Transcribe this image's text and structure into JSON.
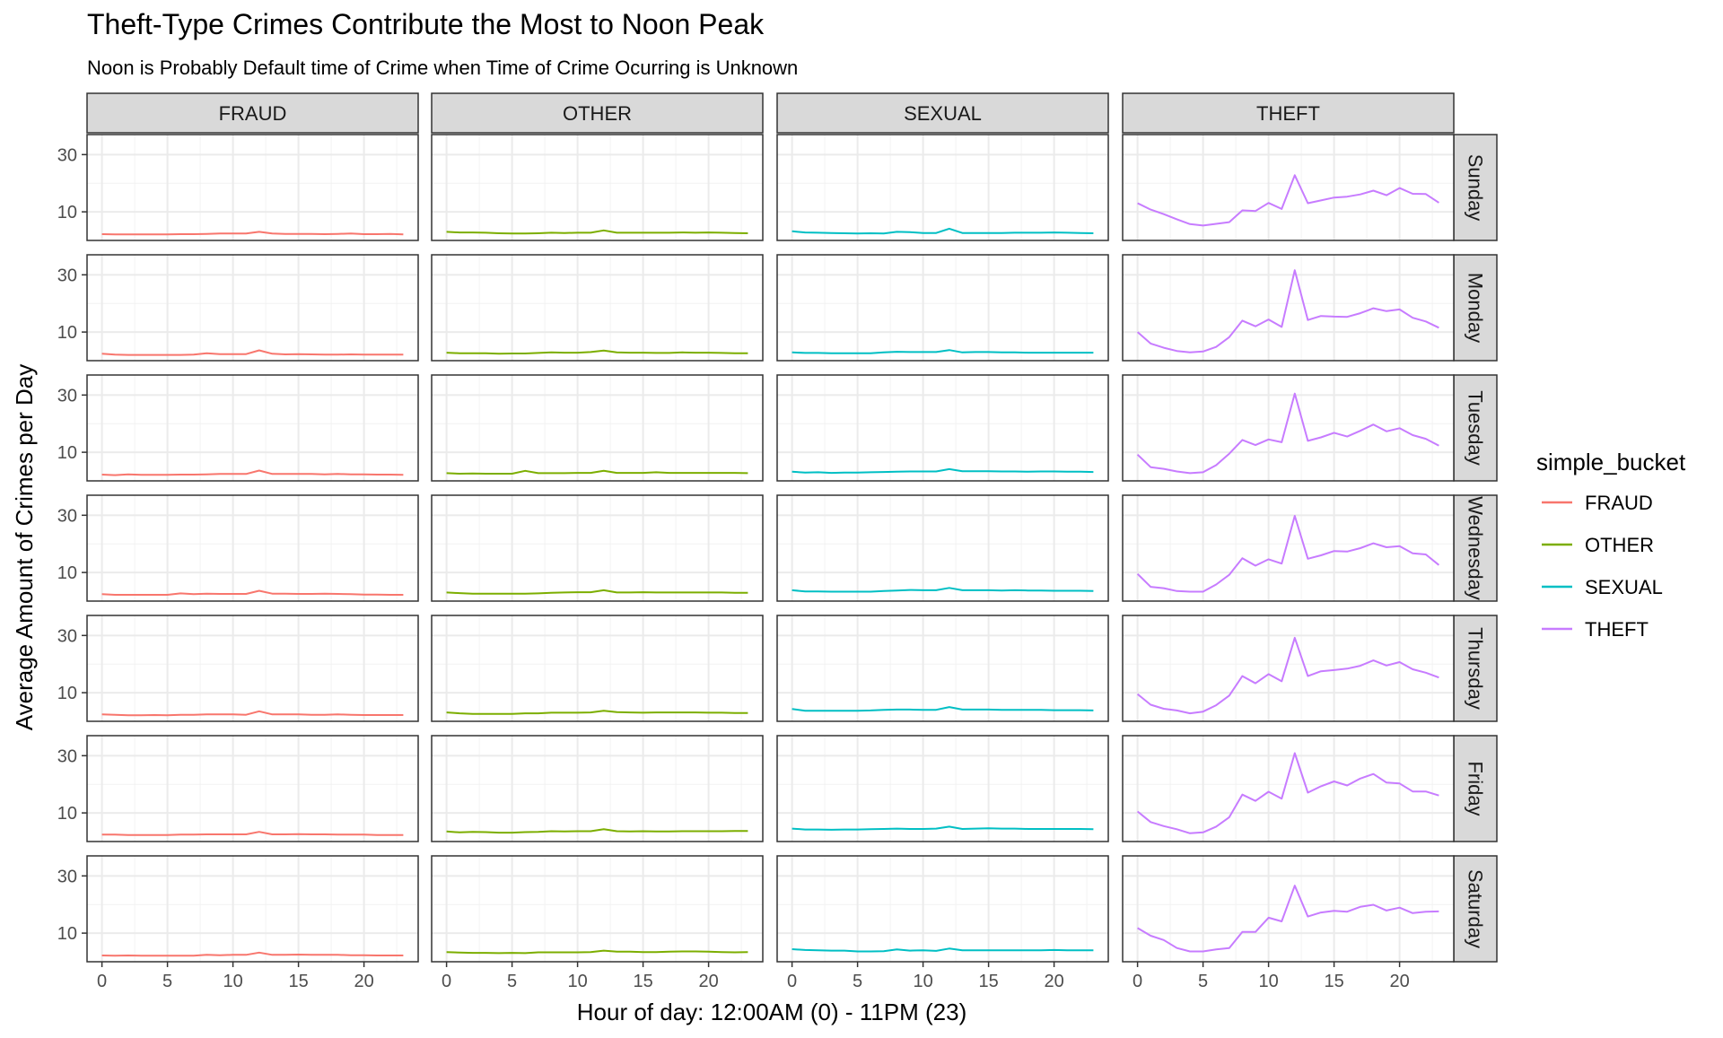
{
  "chart_data": {
    "type": "line",
    "title": "Theft-Type Crimes Contribute the Most to Noon Peak",
    "subtitle": "Noon is Probably Default time of Crime when Time of Crime Ocurring is Unknown",
    "xlabel": "Hour of day: 12:00AM (0) - 11PM (23)",
    "ylabel": "Average Amount of Crimes per Day",
    "xlim": [
      0,
      23
    ],
    "ylim": [
      0,
      37
    ],
    "x_ticks": [
      0,
      5,
      10,
      15,
      20
    ],
    "y_ticks": [
      10,
      30
    ],
    "grid": true,
    "legend_position": "right",
    "legend_title": "simple_bucket",
    "column_facets": [
      "FRAUD",
      "OTHER",
      "SEXUAL",
      "THEFT"
    ],
    "row_facets": [
      "Sunday",
      "Monday",
      "Tuesday",
      "Wednesday",
      "Thursday",
      "Friday",
      "Saturday"
    ],
    "x": [
      0,
      1,
      2,
      3,
      4,
      5,
      6,
      7,
      8,
      9,
      10,
      11,
      12,
      13,
      14,
      15,
      16,
      17,
      18,
      19,
      20,
      21,
      22,
      23
    ],
    "series": [
      {
        "name": "FRAUD",
        "color": "#F8766D",
        "values": {
          "Sunday": [
            2.2,
            2.1,
            2.1,
            2.1,
            2.1,
            2.1,
            2.2,
            2.2,
            2.3,
            2.4,
            2.4,
            2.4,
            3.0,
            2.4,
            2.3,
            2.3,
            2.3,
            2.2,
            2.3,
            2.4,
            2.2,
            2.2,
            2.3,
            2.1
          ],
          "Monday": [
            2.4,
            2.1,
            2.0,
            2.0,
            2.0,
            2.0,
            2.0,
            2.1,
            2.6,
            2.3,
            2.3,
            2.3,
            3.6,
            2.4,
            2.2,
            2.3,
            2.2,
            2.1,
            2.1,
            2.2,
            2.1,
            2.1,
            2.1,
            2.1
          ],
          "Tuesday": [
            2.2,
            2.0,
            2.3,
            2.1,
            2.1,
            2.1,
            2.2,
            2.2,
            2.3,
            2.4,
            2.4,
            2.4,
            3.6,
            2.4,
            2.4,
            2.4,
            2.4,
            2.3,
            2.4,
            2.3,
            2.3,
            2.2,
            2.2,
            2.1
          ],
          "Wednesday": [
            2.4,
            2.2,
            2.2,
            2.2,
            2.2,
            2.2,
            2.7,
            2.4,
            2.6,
            2.5,
            2.5,
            2.5,
            3.6,
            2.6,
            2.6,
            2.5,
            2.5,
            2.6,
            2.5,
            2.4,
            2.3,
            2.3,
            2.2,
            2.2
          ],
          "Thursday": [
            2.4,
            2.3,
            2.1,
            2.1,
            2.2,
            2.1,
            2.3,
            2.3,
            2.4,
            2.4,
            2.4,
            2.3,
            3.5,
            2.4,
            2.4,
            2.4,
            2.3,
            2.3,
            2.4,
            2.3,
            2.2,
            2.2,
            2.2,
            2.2
          ],
          "Friday": [
            2.4,
            2.4,
            2.3,
            2.3,
            2.3,
            2.3,
            2.4,
            2.4,
            2.5,
            2.5,
            2.5,
            2.5,
            3.4,
            2.5,
            2.5,
            2.6,
            2.5,
            2.5,
            2.4,
            2.4,
            2.4,
            2.3,
            2.3,
            2.3
          ],
          "Saturday": [
            2.2,
            2.1,
            2.2,
            2.1,
            2.1,
            2.1,
            2.1,
            2.1,
            2.4,
            2.3,
            2.4,
            2.4,
            3.2,
            2.4,
            2.4,
            2.5,
            2.4,
            2.4,
            2.4,
            2.3,
            2.3,
            2.2,
            2.2,
            2.2
          ]
        }
      },
      {
        "name": "OTHER",
        "color": "#7CAE00",
        "values": {
          "Sunday": [
            3.0,
            2.8,
            2.8,
            2.7,
            2.5,
            2.4,
            2.4,
            2.5,
            2.7,
            2.6,
            2.7,
            2.7,
            3.5,
            2.7,
            2.7,
            2.7,
            2.7,
            2.7,
            2.8,
            2.7,
            2.8,
            2.7,
            2.6,
            2.5
          ],
          "Monday": [
            2.8,
            2.6,
            2.6,
            2.6,
            2.4,
            2.5,
            2.5,
            2.7,
            2.9,
            2.8,
            2.8,
            3.0,
            3.5,
            2.9,
            2.8,
            2.8,
            2.7,
            2.7,
            2.9,
            2.8,
            2.8,
            2.7,
            2.6,
            2.6
          ],
          "Tuesday": [
            2.7,
            2.5,
            2.6,
            2.5,
            2.5,
            2.5,
            3.5,
            2.7,
            2.7,
            2.7,
            2.8,
            2.8,
            3.5,
            2.8,
            2.8,
            2.8,
            3.0,
            2.8,
            2.8,
            2.8,
            2.8,
            2.8,
            2.8,
            2.7
          ],
          "Wednesday": [
            3.0,
            2.8,
            2.6,
            2.6,
            2.6,
            2.6,
            2.6,
            2.7,
            2.9,
            3.0,
            3.1,
            3.1,
            3.8,
            3.0,
            3.0,
            3.1,
            3.0,
            3.0,
            3.0,
            3.0,
            3.0,
            3.0,
            2.9,
            2.9
          ],
          "Thursday": [
            3.1,
            2.8,
            2.6,
            2.6,
            2.6,
            2.6,
            2.8,
            2.8,
            3.0,
            3.0,
            3.0,
            3.1,
            3.7,
            3.2,
            3.1,
            3.0,
            3.1,
            3.1,
            3.1,
            3.1,
            3.0,
            3.0,
            2.9,
            2.9
          ],
          "Friday": [
            3.5,
            3.2,
            3.4,
            3.3,
            3.1,
            3.1,
            3.3,
            3.4,
            3.6,
            3.5,
            3.6,
            3.6,
            4.3,
            3.6,
            3.5,
            3.6,
            3.5,
            3.5,
            3.6,
            3.6,
            3.6,
            3.6,
            3.7,
            3.7
          ],
          "Saturday": [
            3.4,
            3.2,
            3.1,
            3.1,
            3.0,
            3.1,
            3.0,
            3.3,
            3.3,
            3.3,
            3.3,
            3.4,
            3.9,
            3.5,
            3.5,
            3.4,
            3.4,
            3.5,
            3.6,
            3.6,
            3.5,
            3.4,
            3.3,
            3.4
          ]
        }
      },
      {
        "name": "SEXUAL",
        "color": "#00BFC4",
        "values": {
          "Sunday": [
            3.2,
            2.8,
            2.7,
            2.6,
            2.5,
            2.4,
            2.5,
            2.4,
            3.0,
            2.9,
            2.6,
            2.6,
            4.1,
            2.6,
            2.6,
            2.6,
            2.6,
            2.7,
            2.7,
            2.7,
            2.8,
            2.7,
            2.6,
            2.5
          ],
          "Monday": [
            2.9,
            2.7,
            2.7,
            2.6,
            2.6,
            2.6,
            2.6,
            2.9,
            3.1,
            3.0,
            3.0,
            3.0,
            3.7,
            2.9,
            3.0,
            3.0,
            2.9,
            2.9,
            2.8,
            2.8,
            2.8,
            2.8,
            2.8,
            2.8
          ],
          "Tuesday": [
            3.2,
            2.9,
            3.0,
            2.8,
            2.9,
            2.9,
            3.0,
            3.1,
            3.2,
            3.3,
            3.3,
            3.3,
            4.1,
            3.4,
            3.4,
            3.4,
            3.3,
            3.3,
            3.2,
            3.3,
            3.3,
            3.2,
            3.2,
            3.1
          ],
          "Wednesday": [
            3.8,
            3.4,
            3.4,
            3.3,
            3.3,
            3.3,
            3.3,
            3.5,
            3.7,
            3.9,
            3.8,
            3.8,
            4.6,
            3.8,
            3.8,
            3.8,
            3.7,
            3.8,
            3.7,
            3.7,
            3.6,
            3.6,
            3.6,
            3.5
          ],
          "Thursday": [
            4.3,
            3.7,
            3.7,
            3.7,
            3.7,
            3.7,
            3.8,
            4.0,
            4.1,
            4.1,
            4.0,
            4.0,
            5.0,
            4.1,
            4.1,
            4.1,
            4.0,
            4.0,
            4.0,
            4.0,
            3.9,
            3.9,
            3.9,
            3.8
          ],
          "Friday": [
            4.5,
            4.2,
            4.2,
            4.1,
            4.2,
            4.2,
            4.3,
            4.4,
            4.5,
            4.4,
            4.4,
            4.5,
            5.2,
            4.4,
            4.5,
            4.6,
            4.5,
            4.5,
            4.4,
            4.4,
            4.4,
            4.4,
            4.4,
            4.3
          ],
          "Saturday": [
            4.4,
            4.1,
            4.0,
            3.9,
            3.9,
            3.6,
            3.6,
            3.7,
            4.3,
            3.9,
            4.0,
            3.8,
            4.6,
            4.0,
            4.0,
            4.0,
            4.0,
            4.0,
            4.0,
            4.0,
            4.1,
            4.0,
            4.0,
            4.0
          ]
        }
      },
      {
        "name": "THEFT",
        "color": "#C77CFF",
        "values": {
          "Sunday": [
            13.0,
            10.8,
            9.2,
            7.4,
            5.7,
            5.2,
            5.8,
            6.4,
            10.5,
            10.3,
            13.1,
            11.0,
            22.8,
            13.0,
            14.0,
            15.0,
            15.3,
            16.1,
            17.4,
            15.8,
            18.3,
            16.3,
            16.2,
            13.2
          ],
          "Monday": [
            10.0,
            6.0,
            4.5,
            3.4,
            2.9,
            3.2,
            4.8,
            8.2,
            14.0,
            12.0,
            14.4,
            11.8,
            31.6,
            14.2,
            15.6,
            15.4,
            15.3,
            16.6,
            18.3,
            17.3,
            17.9,
            15.0,
            13.7,
            11.5
          ],
          "Tuesday": [
            9.2,
            4.8,
            4.2,
            3.3,
            2.7,
            3.0,
            5.5,
            9.5,
            14.3,
            12.5,
            14.5,
            13.5,
            30.5,
            14.0,
            15.2,
            16.8,
            15.5,
            17.5,
            19.7,
            17.3,
            18.4,
            16.0,
            14.7,
            12.3
          ],
          "Wednesday": [
            9.5,
            5.0,
            4.5,
            3.5,
            3.3,
            3.3,
            5.8,
            9.2,
            15.0,
            12.4,
            14.6,
            13.1,
            29.8,
            14.8,
            16.0,
            17.5,
            17.3,
            18.5,
            20.2,
            18.8,
            19.2,
            16.7,
            16.3,
            12.6
          ],
          "Thursday": [
            9.5,
            5.8,
            4.4,
            3.8,
            2.8,
            3.4,
            5.6,
            9.0,
            15.8,
            13.3,
            16.5,
            14.0,
            29.2,
            15.8,
            17.5,
            17.9,
            18.4,
            19.4,
            21.3,
            19.5,
            20.7,
            18.2,
            17.0,
            15.3
          ],
          "Friday": [
            10.5,
            6.8,
            5.4,
            4.3,
            2.9,
            3.2,
            5.2,
            8.5,
            16.4,
            14.2,
            17.4,
            15.0,
            30.9,
            17.1,
            19.3,
            21.0,
            19.6,
            22.0,
            23.6,
            20.6,
            20.3,
            17.5,
            17.5,
            16.1
          ],
          "Saturday": [
            11.8,
            9.1,
            7.6,
            4.8,
            3.6,
            3.6,
            4.3,
            4.8,
            10.4,
            10.4,
            15.4,
            14.1,
            26.6,
            15.8,
            17.2,
            17.8,
            17.5,
            19.2,
            19.9,
            17.9,
            18.9,
            17.0,
            17.5,
            17.6
          ]
        }
      }
    ]
  }
}
